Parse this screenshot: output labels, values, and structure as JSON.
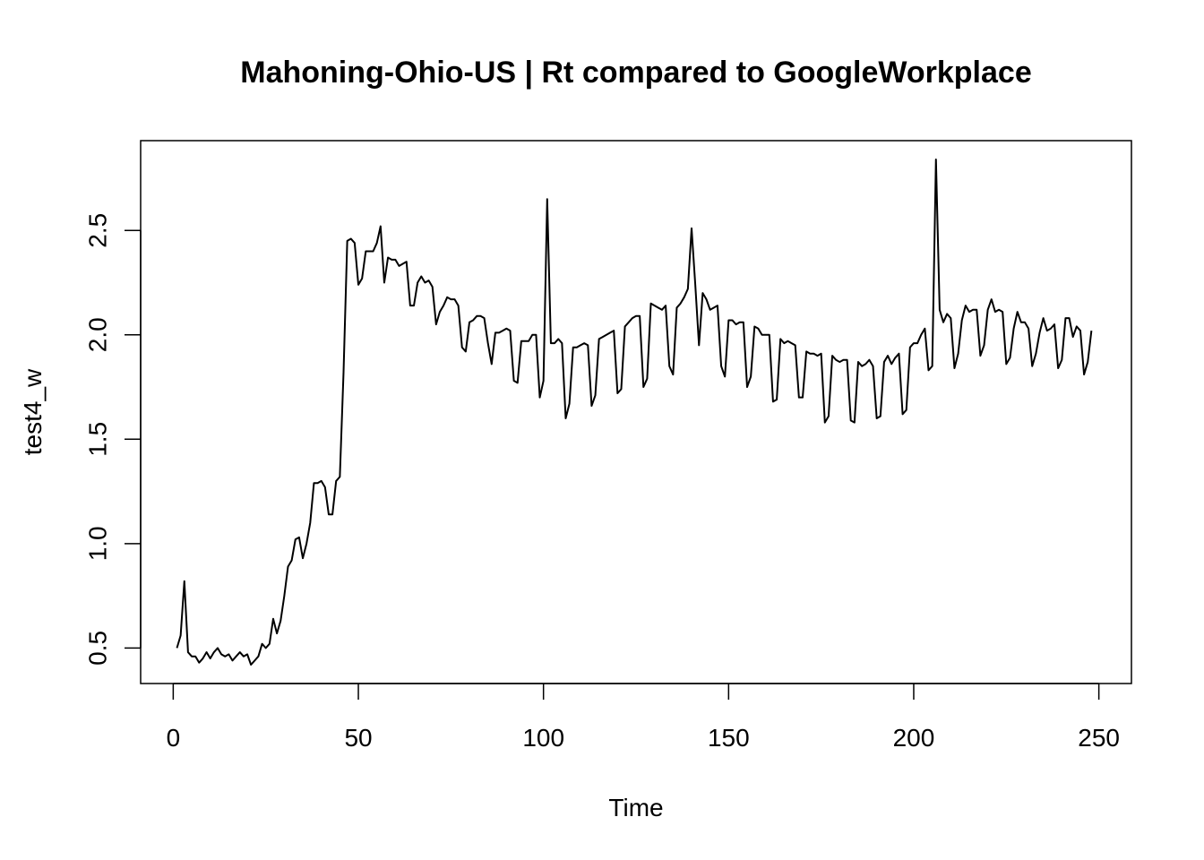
{
  "chart_data": {
    "type": "line",
    "title": "Mahoning-Ohio-US | Rt compared to GoogleWorkplace",
    "xlabel": "Time",
    "ylabel": "test4_w",
    "xlim": [
      -8.8,
      258.8
    ],
    "ylim": [
      0.33,
      2.93
    ],
    "x_ticks": [
      0,
      50,
      100,
      150,
      200,
      250
    ],
    "y_ticks": [
      0.5,
      1.0,
      1.5,
      2.0,
      2.5
    ],
    "x_tick_labels": [
      "0",
      "50",
      "100",
      "150",
      "200",
      "250"
    ],
    "y_tick_labels": [
      "0.5",
      "1.0",
      "1.5",
      "2.0",
      "2.5"
    ],
    "grid": false,
    "legend": "none",
    "line_color": "#000000",
    "series": [
      {
        "x_start": 1,
        "x_step": 1,
        "values": [
          0.5,
          0.56,
          0.82,
          0.48,
          0.46,
          0.46,
          0.43,
          0.45,
          0.48,
          0.45,
          0.48,
          0.5,
          0.47,
          0.46,
          0.47,
          0.44,
          0.46,
          0.48,
          0.46,
          0.47,
          0.42,
          0.44,
          0.46,
          0.52,
          0.5,
          0.52,
          0.64,
          0.57,
          0.63,
          0.75,
          0.89,
          0.92,
          1.02,
          1.03,
          0.93,
          1.0,
          1.1,
          1.29,
          1.29,
          1.3,
          1.27,
          1.14,
          1.14,
          1.3,
          1.32,
          1.82,
          2.45,
          2.46,
          2.44,
          2.24,
          2.27,
          2.4,
          2.4,
          2.4,
          2.44,
          2.52,
          2.25,
          2.37,
          2.36,
          2.36,
          2.33,
          2.34,
          2.35,
          2.14,
          2.14,
          2.25,
          2.28,
          2.25,
          2.26,
          2.23,
          2.05,
          2.11,
          2.14,
          2.18,
          2.17,
          2.17,
          2.14,
          1.94,
          1.92,
          2.06,
          2.07,
          2.09,
          2.09,
          2.08,
          1.96,
          1.86,
          2.01,
          2.01,
          2.02,
          2.03,
          2.02,
          1.78,
          1.77,
          1.97,
          1.97,
          1.97,
          2.0,
          2.0,
          1.7,
          1.78,
          2.65,
          1.96,
          1.96,
          1.98,
          1.96,
          1.6,
          1.67,
          1.94,
          1.94,
          1.95,
          1.96,
          1.95,
          1.66,
          1.71,
          1.98,
          1.99,
          2.0,
          2.01,
          2.02,
          1.72,
          1.74,
          2.04,
          2.06,
          2.08,
          2.09,
          2.09,
          1.75,
          1.79,
          2.15,
          2.14,
          2.13,
          2.12,
          2.14,
          1.85,
          1.81,
          2.13,
          2.15,
          2.18,
          2.22,
          2.51,
          2.24,
          1.95,
          2.2,
          2.17,
          2.12,
          2.13,
          2.14,
          1.85,
          1.8,
          2.07,
          2.07,
          2.05,
          2.06,
          2.06,
          1.75,
          1.8,
          2.04,
          2.03,
          2.0,
          2.0,
          2.0,
          1.68,
          1.69,
          1.98,
          1.96,
          1.97,
          1.96,
          1.95,
          1.7,
          1.7,
          1.92,
          1.91,
          1.91,
          1.9,
          1.91,
          1.58,
          1.61,
          1.9,
          1.88,
          1.87,
          1.88,
          1.88,
          1.59,
          1.58,
          1.87,
          1.85,
          1.86,
          1.88,
          1.85,
          1.6,
          1.61,
          1.87,
          1.9,
          1.86,
          1.89,
          1.91,
          1.62,
          1.64,
          1.94,
          1.96,
          1.96,
          2.0,
          2.03,
          1.83,
          1.85,
          2.84,
          2.12,
          2.06,
          2.1,
          2.08,
          1.84,
          1.91,
          2.07,
          2.14,
          2.11,
          2.12,
          2.12,
          1.9,
          1.95,
          2.12,
          2.17,
          2.11,
          2.12,
          2.11,
          1.86,
          1.89,
          2.03,
          2.11,
          2.06,
          2.06,
          2.03,
          1.85,
          1.91,
          2.01,
          2.08,
          2.02,
          2.03,
          2.05,
          1.84,
          1.88,
          2.08,
          2.08,
          1.99,
          2.04,
          2.02,
          1.81,
          1.87,
          2.02
        ]
      }
    ]
  }
}
